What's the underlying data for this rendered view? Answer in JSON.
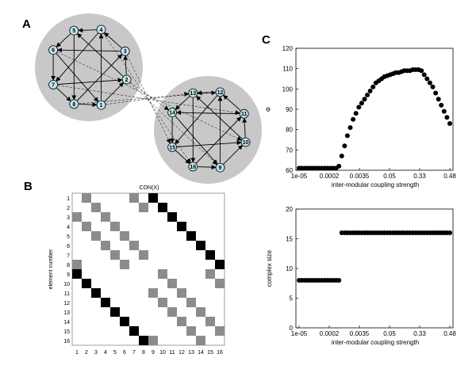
{
  "panels": {
    "a": "A",
    "b": "B",
    "c": "C"
  },
  "network": {
    "module1_nodes": [
      "1",
      "2",
      "3",
      "4",
      "5",
      "6",
      "7",
      "8"
    ],
    "module2_nodes": [
      "9",
      "10",
      "11",
      "12",
      "13",
      "14",
      "15",
      "16"
    ]
  },
  "matrix": {
    "title": "CON(X)",
    "ylabel": "element number",
    "row_labels": [
      "1",
      "2",
      "3",
      "4",
      "5",
      "6",
      "7",
      "8",
      "9",
      "10",
      "11",
      "12",
      "13",
      "14",
      "15",
      "16"
    ],
    "col_labels": [
      "1",
      "2",
      "3",
      "4",
      "5",
      "6",
      "7",
      "8",
      "9",
      "10",
      "11",
      "12",
      "13",
      "14",
      "15",
      "16"
    ],
    "cells_black": [
      [
        1,
        9
      ],
      [
        2,
        10
      ],
      [
        3,
        11
      ],
      [
        4,
        12
      ],
      [
        5,
        13
      ],
      [
        6,
        14
      ],
      [
        7,
        15
      ],
      [
        8,
        16
      ],
      [
        9,
        1
      ],
      [
        10,
        2
      ],
      [
        11,
        3
      ],
      [
        12,
        4
      ],
      [
        13,
        5
      ],
      [
        14,
        6
      ],
      [
        15,
        7
      ],
      [
        16,
        8
      ]
    ],
    "cells_gray": [
      [
        1,
        2
      ],
      [
        1,
        7
      ],
      [
        2,
        3
      ],
      [
        2,
        8
      ],
      [
        3,
        1
      ],
      [
        3,
        4
      ],
      [
        4,
        2
      ],
      [
        4,
        5
      ],
      [
        5,
        3
      ],
      [
        5,
        6
      ],
      [
        6,
        4
      ],
      [
        6,
        7
      ],
      [
        7,
        5
      ],
      [
        7,
        8
      ],
      [
        8,
        1
      ],
      [
        8,
        6
      ],
      [
        9,
        10
      ],
      [
        9,
        15
      ],
      [
        10,
        11
      ],
      [
        10,
        16
      ],
      [
        11,
        9
      ],
      [
        11,
        12
      ],
      [
        12,
        10
      ],
      [
        12,
        13
      ],
      [
        13,
        11
      ],
      [
        13,
        14
      ],
      [
        14,
        12
      ],
      [
        14,
        15
      ],
      [
        15,
        13
      ],
      [
        15,
        16
      ],
      [
        16,
        9
      ],
      [
        16,
        14
      ]
    ]
  },
  "chart_data": [
    {
      "type": "scatter",
      "ylabel": "Φ",
      "xlabel": "inter-modular coupling strength",
      "ylim": [
        60,
        120
      ],
      "yticks": [
        "60",
        "70",
        "80",
        "90",
        "100",
        "110",
        "120"
      ],
      "xticks": [
        "1e-05",
        "0.0002",
        "0.0035",
        "0.05",
        "0.33",
        "0.48"
      ],
      "y": [
        61,
        61,
        61,
        61,
        61,
        61,
        61,
        61,
        61,
        61,
        61,
        61,
        61,
        61,
        62,
        67,
        72,
        77,
        81,
        85,
        88,
        91,
        93,
        95,
        97,
        99,
        101,
        103,
        104,
        105,
        106,
        106.5,
        107,
        107.5,
        108,
        108,
        108.5,
        109,
        109,
        109,
        109.5,
        109.5,
        109.5,
        109,
        107,
        105,
        103,
        101,
        98,
        95,
        92,
        89,
        86,
        83
      ]
    },
    {
      "type": "scatter",
      "ylabel": "complex size",
      "xlabel": "inter-modular coupling strength",
      "ylim": [
        0,
        20
      ],
      "yticks": [
        "0",
        "5",
        "10",
        "15",
        "20"
      ],
      "xticks": [
        "1e-05",
        "0.0002",
        "0.0035",
        "0.05",
        "0.33",
        "0.48"
      ],
      "y": [
        8,
        8,
        8,
        8,
        8,
        8,
        8,
        8,
        8,
        8,
        8,
        8,
        8,
        8,
        8,
        16,
        16,
        16,
        16,
        16,
        16,
        16,
        16,
        16,
        16,
        16,
        16,
        16,
        16,
        16,
        16,
        16,
        16,
        16,
        16,
        16,
        16,
        16,
        16,
        16,
        16,
        16,
        16,
        16,
        16,
        16,
        16,
        16,
        16,
        16,
        16,
        16,
        16,
        16
      ]
    }
  ]
}
